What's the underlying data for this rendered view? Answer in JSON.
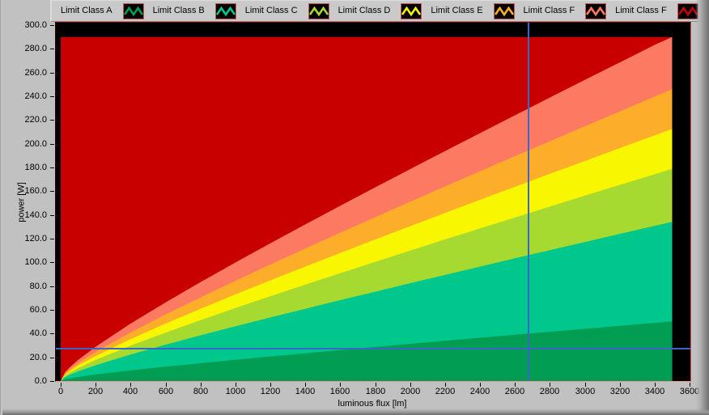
{
  "window": {
    "bg": "#C1C1C1"
  },
  "legend": {
    "items": [
      {
        "label": "Limit Class A",
        "color": "#009D52"
      },
      {
        "label": "Limit Class B",
        "color": "#00C78B"
      },
      {
        "label": "Limit Class C",
        "color": "#A7DA30"
      },
      {
        "label": "Limit Class D",
        "color": "#F8F600"
      },
      {
        "label": "Limit Class E",
        "color": "#FCAE2B"
      },
      {
        "label": "Limit Class F",
        "color": "#FC7A62"
      },
      {
        "label": "Limit Class F",
        "color": "#C80000"
      }
    ]
  },
  "chart_data": {
    "type": "area",
    "title": "",
    "xlabel": "luminous flux [lm]",
    "ylabel": "power [W]",
    "xlim": [
      0,
      3600
    ],
    "ylim": [
      0,
      300
    ],
    "grid": false,
    "legend_position": "top",
    "plot_bg": "#000000",
    "x_ticks": [
      0,
      200,
      400,
      600,
      800,
      1000,
      1200,
      1400,
      1600,
      1800,
      2000,
      2200,
      2400,
      2600,
      2800,
      3000,
      3200,
      3400,
      3600
    ],
    "x_tick_labels": [
      "0",
      "200",
      "400",
      "600",
      "800",
      "1000",
      "1200",
      "1400",
      "1600",
      "1800",
      "2000",
      "2200",
      "2400",
      "2600",
      "2800",
      "3000",
      "3200",
      "3400",
      "3600"
    ],
    "y_ticks": [
      0,
      20,
      40,
      60,
      80,
      100,
      120,
      140,
      160,
      180,
      200,
      220,
      240,
      260,
      280,
      300
    ],
    "y_tick_labels": [
      "0.0",
      "20.0",
      "40.0",
      "60.0",
      "80.0",
      "100.0",
      "120.0",
      "140.0",
      "160.0",
      "180.0",
      "200.0",
      "220.0",
      "240.0",
      "260.0",
      "280.0",
      "300.0"
    ],
    "series": [
      {
        "name": "Limit Class F",
        "color": "#C80000",
        "points": [
          [
            0,
            290
          ],
          [
            3500,
            290
          ]
        ]
      },
      {
        "name": "Limit Class F",
        "color": "#FC7A62",
        "points": [
          [
            0,
            0
          ],
          [
            25,
            7.3
          ],
          [
            50,
            11.3
          ],
          [
            100,
            17.8
          ],
          [
            200,
            28.9
          ],
          [
            400,
            48.4
          ],
          [
            600,
            66.2
          ],
          [
            800,
            83.3
          ],
          [
            1000,
            99.9
          ],
          [
            1200,
            116.1
          ],
          [
            1400,
            132.0
          ],
          [
            1600,
            147.7
          ],
          [
            1800,
            163.2
          ],
          [
            2000,
            178.6
          ],
          [
            2200,
            193.8
          ],
          [
            2400,
            208.9
          ],
          [
            2600,
            224.0
          ],
          [
            2800,
            238.9
          ],
          [
            3000,
            253.8
          ],
          [
            3200,
            268.5
          ],
          [
            3400,
            283.3
          ],
          [
            3500,
            290.0
          ]
        ]
      },
      {
        "name": "Limit Class E",
        "color": "#FCAE2B",
        "points": [
          [
            0,
            0
          ],
          [
            25,
            6.2
          ],
          [
            50,
            9.5
          ],
          [
            100,
            15.1
          ],
          [
            200,
            24.5
          ],
          [
            400,
            40.9
          ],
          [
            600,
            56.1
          ],
          [
            800,
            70.5
          ],
          [
            1000,
            84.5
          ],
          [
            1200,
            98.2
          ],
          [
            1400,
            111.7
          ],
          [
            1600,
            125.0
          ],
          [
            1800,
            138.1
          ],
          [
            2000,
            151.1
          ],
          [
            2200,
            164.0
          ],
          [
            2400,
            176.8
          ],
          [
            2600,
            189.5
          ],
          [
            2800,
            202.1
          ],
          [
            3000,
            214.7
          ],
          [
            3200,
            227.2
          ],
          [
            3400,
            239.7
          ],
          [
            3500,
            245.9
          ]
        ]
      },
      {
        "name": "Limit Class D",
        "color": "#F8F600",
        "points": [
          [
            0,
            0
          ],
          [
            25,
            5.3
          ],
          [
            50,
            8.2
          ],
          [
            100,
            13.0
          ],
          [
            200,
            21.1
          ],
          [
            400,
            35.3
          ],
          [
            600,
            48.4
          ],
          [
            800,
            60.9
          ],
          [
            1000,
            73.0
          ],
          [
            1200,
            84.8
          ],
          [
            1400,
            96.5
          ],
          [
            1600,
            107.9
          ],
          [
            1800,
            119.3
          ],
          [
            2000,
            130.5
          ],
          [
            2200,
            141.6
          ],
          [
            2400,
            152.7
          ],
          [
            2600,
            163.7
          ],
          [
            2800,
            174.6
          ],
          [
            3000,
            185.4
          ],
          [
            3200,
            196.3
          ],
          [
            3400,
            207.0
          ],
          [
            3500,
            212.4
          ]
        ]
      },
      {
        "name": "Limit Class C",
        "color": "#A7DA30",
        "points": [
          [
            0,
            0
          ],
          [
            25,
            4.5
          ],
          [
            50,
            6.9
          ],
          [
            100,
            11.0
          ],
          [
            200,
            17.8
          ],
          [
            400,
            29.8
          ],
          [
            600,
            40.8
          ],
          [
            800,
            51.3
          ],
          [
            1000,
            61.5
          ],
          [
            1200,
            71.4
          ],
          [
            1400,
            81.2
          ],
          [
            1600,
            90.9
          ],
          [
            1800,
            100.4
          ],
          [
            2000,
            109.9
          ],
          [
            2200,
            119.3
          ],
          [
            2400,
            128.6
          ],
          [
            2600,
            137.8
          ],
          [
            2800,
            147.0
          ],
          [
            3000,
            156.2
          ],
          [
            3200,
            165.3
          ],
          [
            3400,
            174.3
          ],
          [
            3500,
            178.8
          ]
        ]
      },
      {
        "name": "Limit Class B",
        "color": "#00C78B",
        "points": [
          [
            0,
            0
          ],
          [
            25,
            3.4
          ],
          [
            50,
            5.2
          ],
          [
            100,
            8.2
          ],
          [
            200,
            13.3
          ],
          [
            400,
            22.3
          ],
          [
            600,
            30.6
          ],
          [
            800,
            38.5
          ],
          [
            1000,
            46.1
          ],
          [
            1200,
            53.6
          ],
          [
            1400,
            60.9
          ],
          [
            1600,
            68.2
          ],
          [
            1800,
            75.3
          ],
          [
            2000,
            82.4
          ],
          [
            2200,
            89.4
          ],
          [
            2400,
            96.4
          ],
          [
            2600,
            103.4
          ],
          [
            2800,
            110.3
          ],
          [
            3000,
            117.1
          ],
          [
            3200,
            124.0
          ],
          [
            3400,
            130.7
          ],
          [
            3500,
            134.1
          ]
        ]
      },
      {
        "name": "Limit Class A",
        "color": "#009D52",
        "points": [
          [
            0,
            0
          ],
          [
            25,
            1.5
          ],
          [
            50,
            2.2
          ],
          [
            100,
            3.4
          ],
          [
            200,
            5.5
          ],
          [
            400,
            8.9
          ],
          [
            600,
            12.1
          ],
          [
            800,
            15.0
          ],
          [
            1000,
            17.9
          ],
          [
            1200,
            20.7
          ],
          [
            1400,
            23.4
          ],
          [
            1600,
            26.1
          ],
          [
            1800,
            28.7
          ],
          [
            2000,
            31.3
          ],
          [
            2200,
            33.9
          ],
          [
            2400,
            36.5
          ],
          [
            2600,
            39.0
          ],
          [
            2800,
            41.5
          ],
          [
            3000,
            44.0
          ],
          [
            3200,
            46.5
          ],
          [
            3400,
            49.0
          ],
          [
            3500,
            50.3
          ]
        ]
      }
    ],
    "cursor": {
      "x": 2678,
      "y": 27.3,
      "color": "#3A66C8"
    }
  }
}
